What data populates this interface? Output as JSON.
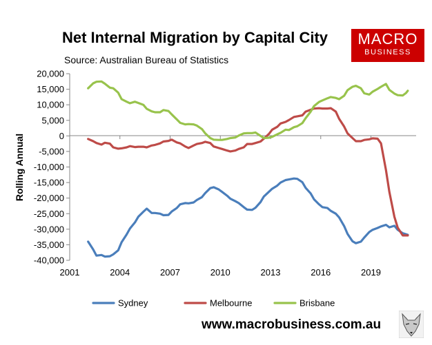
{
  "header": {
    "title": "Net Internal Migration by Capital City",
    "source": "Source: Australian Bureau of Statistics",
    "logo_line1": "MACRO",
    "logo_line2": "BUSINESS",
    "website": "www.macrobusiness.com.au"
  },
  "chart_data": {
    "type": "line",
    "title": "Net Internal Migration by Capital City",
    "ylabel": "Rolling Annual",
    "xlabel": "",
    "xlim": [
      2001,
      2021.7
    ],
    "ylim": [
      -40000,
      20000
    ],
    "x_ticks": [
      2001,
      2004,
      2007,
      2010,
      2013,
      2016,
      2019
    ],
    "x_tick_labels": [
      "2001",
      "2004",
      "2007",
      "2010",
      "2013",
      "2016",
      "2019"
    ],
    "y_ticks": [
      -40000,
      -35000,
      -30000,
      -25000,
      -20000,
      -15000,
      -10000,
      -5000,
      0,
      5000,
      10000,
      15000,
      20000
    ],
    "y_tick_labels": [
      "-40,000",
      "-35,000",
      "-30,000",
      "-25,000",
      "-20,000",
      "-15,000",
      "-10,000",
      "-5,000",
      "0",
      "5,000",
      "10,000",
      "15,000",
      "20,000"
    ],
    "grid": false,
    "legend_position": "bottom",
    "series": [
      {
        "name": "Sydney",
        "color": "#4a7ebb",
        "x": [
          2002.1,
          2002.4,
          2002.6,
          2002.9,
          2003.1,
          2003.4,
          2003.6,
          2003.9,
          2004.1,
          2004.4,
          2004.6,
          2004.9,
          2005.1,
          2005.4,
          2005.6,
          2005.9,
          2006.1,
          2006.4,
          2006.6,
          2006.9,
          2007.1,
          2007.4,
          2007.6,
          2007.9,
          2008.1,
          2008.4,
          2008.6,
          2008.9,
          2009.1,
          2009.4,
          2009.6,
          2009.9,
          2010.1,
          2010.4,
          2010.6,
          2010.9,
          2011.1,
          2011.4,
          2011.6,
          2011.9,
          2012.1,
          2012.4,
          2012.6,
          2012.9,
          2013.1,
          2013.4,
          2013.6,
          2013.9,
          2014.1,
          2014.4,
          2014.6,
          2014.9,
          2015.1,
          2015.4,
          2015.6,
          2015.9,
          2016.1,
          2016.4,
          2016.6,
          2016.9,
          2017.1,
          2017.4,
          2017.6,
          2017.9,
          2018.1,
          2018.4,
          2018.6,
          2018.9,
          2019.1,
          2019.4,
          2019.6,
          2019.9,
          2020.1,
          2020.4,
          2020.6,
          2020.9,
          2021.1,
          2021.2
        ],
        "values": [
          -34000,
          -36500,
          -38500,
          -38300,
          -38800,
          -38700,
          -38100,
          -36800,
          -34200,
          -31700,
          -29800,
          -27800,
          -26000,
          -24400,
          -23400,
          -24800,
          -24800,
          -25000,
          -25500,
          -25400,
          -24300,
          -23200,
          -22000,
          -21600,
          -21700,
          -21400,
          -20600,
          -19700,
          -18400,
          -16800,
          -16500,
          -17200,
          -18000,
          -19200,
          -20200,
          -21000,
          -21600,
          -22900,
          -23700,
          -23800,
          -23100,
          -21300,
          -19500,
          -18000,
          -17000,
          -16000,
          -15000,
          -14200,
          -14000,
          -13700,
          -13800,
          -14900,
          -16700,
          -18500,
          -20400,
          -22000,
          -22900,
          -23200,
          -24100,
          -25000,
          -26200,
          -29000,
          -31500,
          -33900,
          -34500,
          -34000,
          -32700,
          -30900,
          -30200,
          -29600,
          -29100,
          -28600,
          -29400,
          -28900,
          -30200,
          -31300,
          -31600,
          -31800
        ]
      },
      {
        "name": "Melbourne",
        "color": "#be4b48",
        "x": [
          2002.1,
          2002.4,
          2002.6,
          2002.9,
          2003.1,
          2003.4,
          2003.6,
          2003.9,
          2004.1,
          2004.4,
          2004.6,
          2004.9,
          2005.1,
          2005.4,
          2005.6,
          2005.9,
          2006.1,
          2006.4,
          2006.6,
          2006.9,
          2007.1,
          2007.4,
          2007.6,
          2007.9,
          2008.1,
          2008.4,
          2008.6,
          2008.9,
          2009.1,
          2009.4,
          2009.6,
          2009.9,
          2010.1,
          2010.4,
          2010.6,
          2010.9,
          2011.1,
          2011.4,
          2011.6,
          2011.9,
          2012.1,
          2012.4,
          2012.6,
          2012.9,
          2013.1,
          2013.4,
          2013.6,
          2013.9,
          2014.1,
          2014.4,
          2014.6,
          2014.9,
          2015.1,
          2015.4,
          2015.6,
          2015.9,
          2016.1,
          2016.4,
          2016.6,
          2016.9,
          2017.1,
          2017.4,
          2017.6,
          2017.9,
          2018.1,
          2018.4,
          2018.6,
          2018.9,
          2019.1,
          2019.4,
          2019.6,
          2019.9,
          2020.1,
          2020.4,
          2020.6,
          2020.9,
          2021.1,
          2021.2
        ],
        "values": [
          -1000,
          -1700,
          -2300,
          -2800,
          -2200,
          -2500,
          -3700,
          -4100,
          -4000,
          -3700,
          -3300,
          -3600,
          -3500,
          -3500,
          -3700,
          -3100,
          -2900,
          -2400,
          -1800,
          -1600,
          -1200,
          -2100,
          -2400,
          -3400,
          -3900,
          -3100,
          -2600,
          -2300,
          -1900,
          -2300,
          -3400,
          -3900,
          -4200,
          -4700,
          -5000,
          -4700,
          -4200,
          -3700,
          -2600,
          -2600,
          -2300,
          -1800,
          -900,
          600,
          2000,
          2900,
          4000,
          4500,
          5100,
          6100,
          6300,
          6600,
          7800,
          8400,
          8800,
          8900,
          8800,
          8800,
          8900,
          7800,
          5500,
          3000,
          800,
          -700,
          -1700,
          -1700,
          -1300,
          -1100,
          -800,
          -900,
          -2400,
          -11000,
          -18000,
          -26000,
          -29500,
          -32000,
          -32000,
          -32000
        ]
      },
      {
        "name": "Brisbane",
        "color": "#98c34c",
        "x": [
          2002.1,
          2002.4,
          2002.6,
          2002.9,
          2003.1,
          2003.4,
          2003.6,
          2003.9,
          2004.1,
          2004.4,
          2004.6,
          2004.9,
          2005.1,
          2005.4,
          2005.6,
          2005.9,
          2006.1,
          2006.4,
          2006.6,
          2006.9,
          2007.1,
          2007.4,
          2007.6,
          2007.9,
          2008.1,
          2008.4,
          2008.6,
          2008.9,
          2009.1,
          2009.4,
          2009.6,
          2009.9,
          2010.1,
          2010.4,
          2010.6,
          2010.9,
          2011.1,
          2011.4,
          2011.6,
          2011.9,
          2012.1,
          2012.4,
          2012.6,
          2012.9,
          2013.1,
          2013.4,
          2013.6,
          2013.9,
          2014.1,
          2014.4,
          2014.6,
          2014.9,
          2015.1,
          2015.4,
          2015.6,
          2015.9,
          2016.1,
          2016.4,
          2016.6,
          2016.9,
          2017.1,
          2017.4,
          2017.6,
          2017.9,
          2018.1,
          2018.4,
          2018.6,
          2018.9,
          2019.1,
          2019.4,
          2019.6,
          2019.9,
          2020.1,
          2020.4,
          2020.6,
          2020.9,
          2021.1,
          2021.2
        ],
        "values": [
          15300,
          16900,
          17400,
          17500,
          16800,
          15500,
          15300,
          13900,
          11800,
          11000,
          10500,
          11000,
          10600,
          10000,
          8700,
          7900,
          7600,
          7600,
          8300,
          8000,
          6900,
          5300,
          4200,
          3700,
          3800,
          3700,
          3300,
          2200,
          800,
          -700,
          -1200,
          -1300,
          -1300,
          -1000,
          -700,
          -500,
          100,
          800,
          900,
          900,
          1100,
          0,
          -700,
          -600,
          -300,
          500,
          1000,
          2000,
          1900,
          2800,
          3100,
          4100,
          5700,
          7800,
          9600,
          10900,
          11400,
          12100,
          12500,
          12200,
          11800,
          12900,
          14700,
          15800,
          16100,
          15300,
          13700,
          13300,
          14200,
          15100,
          15800,
          16700,
          14800,
          13600,
          13100,
          13000,
          13800,
          14500
        ]
      }
    ]
  }
}
